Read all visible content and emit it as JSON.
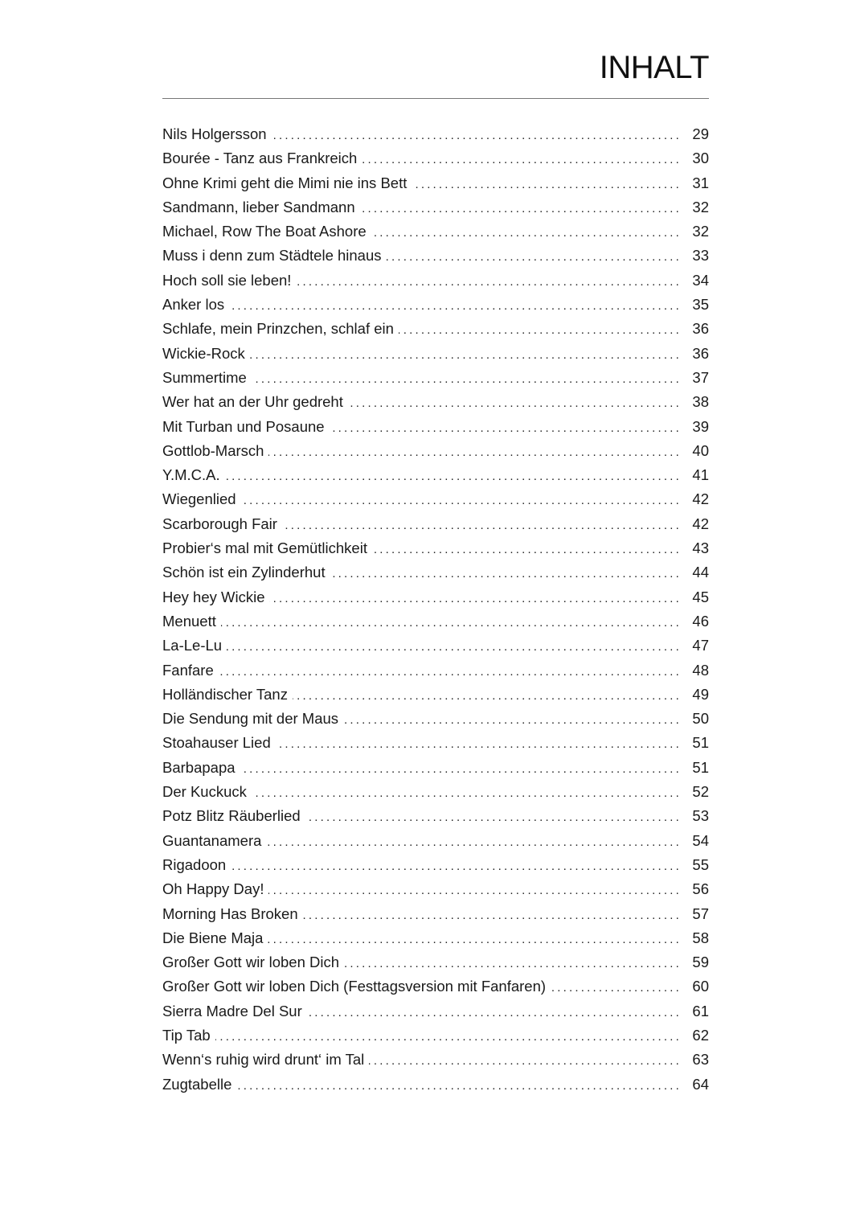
{
  "header": {
    "title": "INHALT"
  },
  "entries": [
    {
      "title": "Nils Holgersson",
      "page": "29"
    },
    {
      "title": "Bourée - Tanz aus Frankreich",
      "page": "30"
    },
    {
      "title": "Ohne Krimi geht die Mimi nie ins Bett",
      "page": "31"
    },
    {
      "title": "Sandmann, lieber Sandmann",
      "page": "32"
    },
    {
      "title": "Michael, Row The Boat Ashore",
      "page": "32"
    },
    {
      "title": "Muss i denn zum Städtele hinaus",
      "page": "33"
    },
    {
      "title": "Hoch soll sie leben!",
      "page": "34"
    },
    {
      "title": "Anker los",
      "page": "35"
    },
    {
      "title": "Schlafe, mein Prinzchen, schlaf ein",
      "page": "36"
    },
    {
      "title": "Wickie-Rock",
      "page": "36"
    },
    {
      "title": "Summertime",
      "page": "37"
    },
    {
      "title": "Wer hat an der Uhr gedreht",
      "page": "38"
    },
    {
      "title": "Mit Turban und Posaune",
      "page": "39"
    },
    {
      "title": "Gottlob-Marsch",
      "page": "40"
    },
    {
      "title": "Y.M.C.A.",
      "page": "41"
    },
    {
      "title": "Wiegenlied",
      "page": "42"
    },
    {
      "title": "Scarborough Fair",
      "page": "42"
    },
    {
      "title": "Probier‘s mal mit Gemütlichkeit",
      "page": "43"
    },
    {
      "title": "Schön ist ein Zylinderhut",
      "page": "44"
    },
    {
      "title": "Hey hey Wickie",
      "page": "45"
    },
    {
      "title": "Menuett",
      "page": "46"
    },
    {
      "title": "La-Le-Lu",
      "page": "47"
    },
    {
      "title": "Fanfare",
      "page": "48"
    },
    {
      "title": "Holländischer Tanz",
      "page": "49"
    },
    {
      "title": "Die Sendung mit der Maus",
      "page": "50"
    },
    {
      "title": "Stoahauser Lied",
      "page": "51"
    },
    {
      "title": "Barbapapa",
      "page": "51"
    },
    {
      "title": "Der Kuckuck",
      "page": "52"
    },
    {
      "title": "Potz Blitz Räuberlied",
      "page": "53"
    },
    {
      "title": "Guantanamera",
      "page": "54"
    },
    {
      "title": "Rigadoon",
      "page": "55"
    },
    {
      "title": "Oh Happy Day!",
      "page": "56"
    },
    {
      "title": "Morning Has Broken",
      "page": "57"
    },
    {
      "title": "Die Biene Maja",
      "page": "58"
    },
    {
      "title": "Großer Gott wir loben Dich",
      "page": "59"
    },
    {
      "title": "Großer Gott wir loben Dich (Festtagsversion mit Fanfaren)",
      "page": "60"
    },
    {
      "title": "Sierra Madre Del Sur",
      "page": "61"
    },
    {
      "title": "Tip Tab",
      "page": "62"
    },
    {
      "title": "Wenn‘s ruhig wird drunt‘ im Tal",
      "page": "63"
    },
    {
      "title": "Zugtabelle",
      "page": "64"
    }
  ]
}
